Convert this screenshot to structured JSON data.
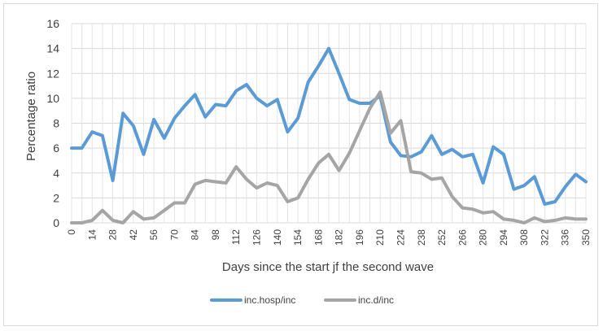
{
  "chart_data": {
    "type": "line",
    "title": "",
    "xlabel": "Days since the start jf the second wave",
    "ylabel": "Percentage ratio",
    "xlim": [
      0,
      350
    ],
    "ylim": [
      0,
      16
    ],
    "y_ticks": [
      0,
      2,
      4,
      6,
      8,
      10,
      12,
      14,
      16
    ],
    "x_ticks": [
      0,
      14,
      28,
      42,
      56,
      70,
      84,
      98,
      112,
      126,
      140,
      154,
      168,
      182,
      196,
      210,
      224,
      238,
      252,
      266,
      280,
      294,
      308,
      322,
      336,
      350
    ],
    "grid": true,
    "legend_position": "bottom",
    "x": [
      0,
      7,
      14,
      21,
      28,
      35,
      42,
      49,
      56,
      63,
      70,
      77,
      84,
      91,
      98,
      105,
      112,
      119,
      126,
      133,
      140,
      147,
      154,
      161,
      168,
      175,
      182,
      189,
      196,
      203,
      210,
      217,
      224,
      231,
      238,
      245,
      252,
      259,
      266,
      273,
      280,
      287,
      294,
      301,
      308,
      315,
      322,
      329,
      336,
      343,
      350
    ],
    "series": [
      {
        "name": "inc.hosp/inc",
        "color": "#5b9bd5",
        "values": [
          6.0,
          6.0,
          7.3,
          7.0,
          3.4,
          8.8,
          7.8,
          5.5,
          8.3,
          6.8,
          8.4,
          9.4,
          10.3,
          8.5,
          9.5,
          9.4,
          10.6,
          11.1,
          10.0,
          9.4,
          9.9,
          7.3,
          8.4,
          11.3,
          12.6,
          14.0,
          12.0,
          9.9,
          9.6,
          9.6,
          10.2,
          6.5,
          5.4,
          5.3,
          5.7,
          7.0,
          5.5,
          5.9,
          5.3,
          5.5,
          3.2,
          6.1,
          5.5,
          2.7,
          3.0,
          3.7,
          1.5,
          1.7,
          2.9,
          3.9,
          3.3
        ]
      },
      {
        "name": "inc.d/inc",
        "color": "#a5a5a5",
        "values": [
          0.0,
          0.0,
          0.2,
          1.0,
          0.2,
          0.0,
          0.9,
          0.3,
          0.4,
          1.0,
          1.6,
          1.6,
          3.1,
          3.4,
          3.3,
          3.2,
          4.5,
          3.5,
          2.8,
          3.2,
          3.0,
          1.7,
          2.0,
          3.5,
          4.8,
          5.5,
          4.2,
          5.6,
          7.4,
          9.2,
          10.5,
          7.2,
          8.2,
          4.1,
          4.0,
          3.5,
          3.6,
          2.1,
          1.2,
          1.1,
          0.8,
          0.9,
          0.3,
          0.2,
          0.0,
          0.4,
          0.1,
          0.2,
          0.4,
          0.3,
          0.3
        ]
      }
    ]
  }
}
